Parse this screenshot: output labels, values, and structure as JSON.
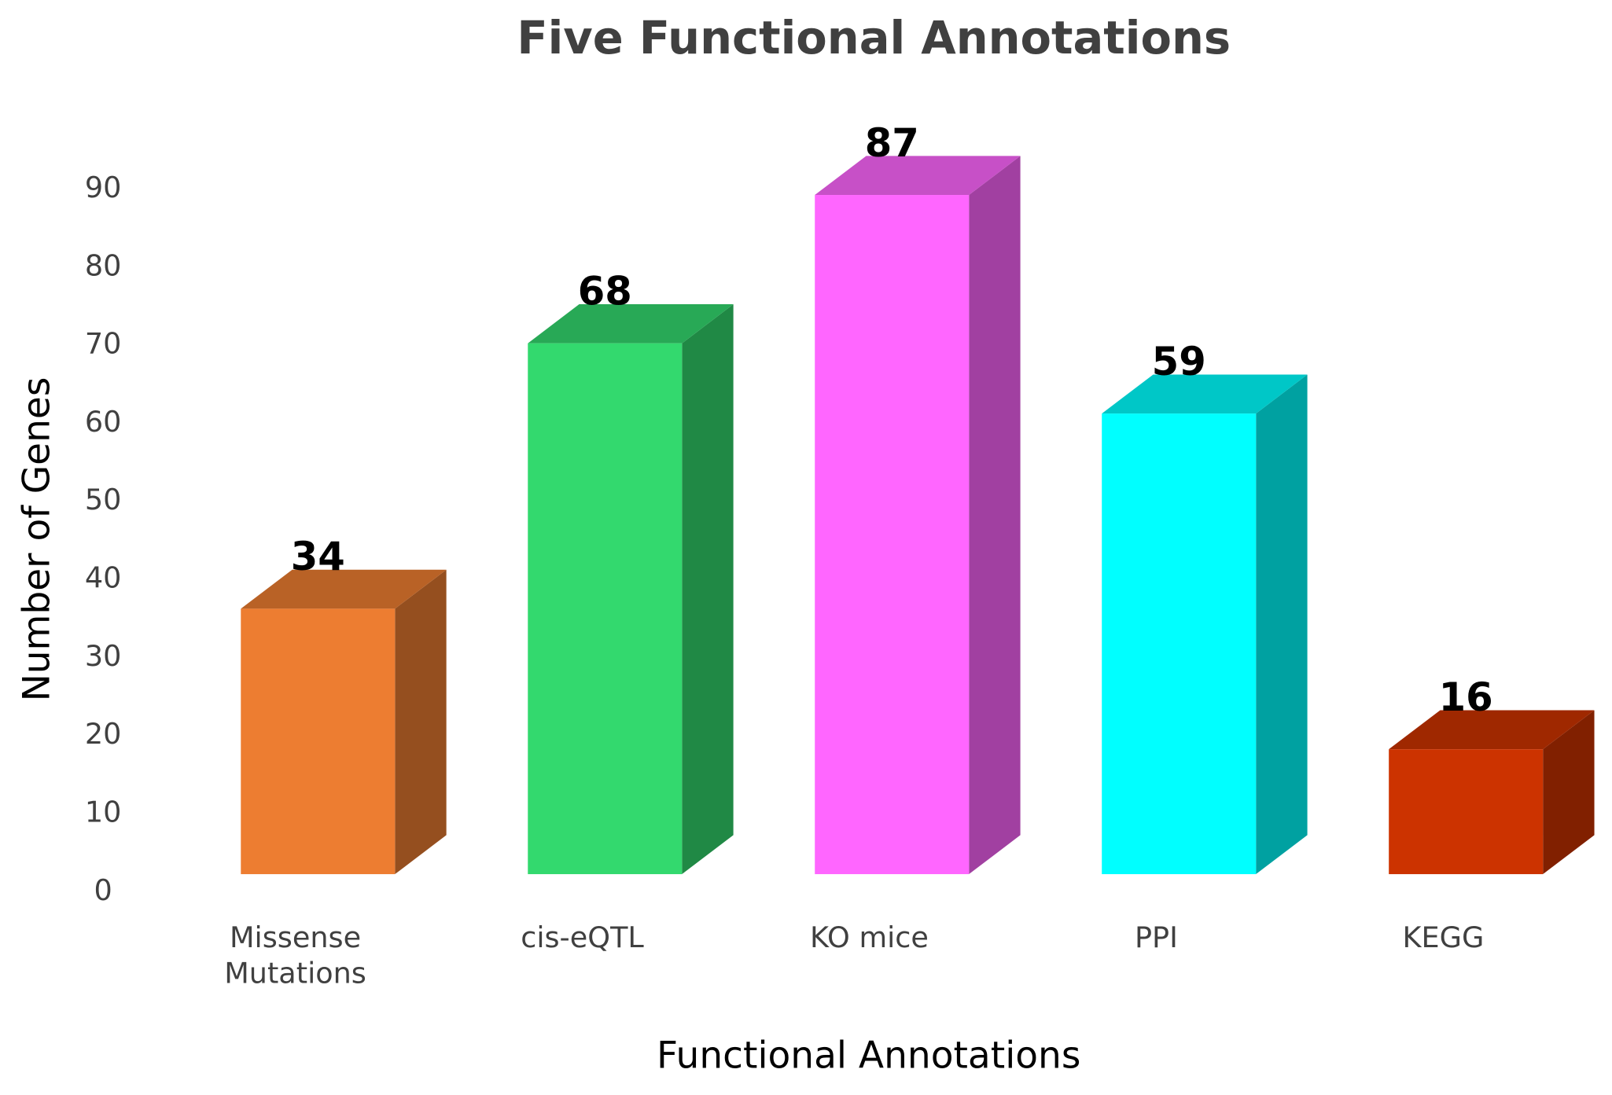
{
  "chart_data": {
    "type": "bar3d",
    "title": "Five Functional Annotations",
    "xlabel": "Functional Annotations",
    "ylabel": "Number of Genes",
    "categories": [
      "Missense Mutations",
      "cis-eQTL",
      "KO mice",
      "PPI",
      "KEGG"
    ],
    "values": [
      34,
      68,
      87,
      59,
      16
    ],
    "colors": [
      "#ED7D31",
      "#33D96E",
      "#FF66FF",
      "#00FFFF",
      "#CC3300"
    ],
    "ylim": [
      0,
      90
    ],
    "yticks": [
      0,
      10,
      20,
      30,
      40,
      50,
      60,
      70,
      80,
      90
    ],
    "grid": false
  }
}
